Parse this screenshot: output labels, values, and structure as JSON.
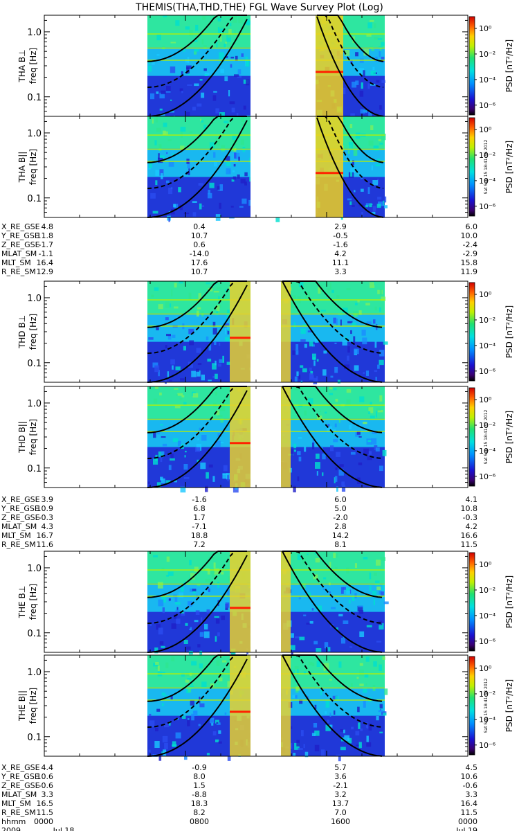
{
  "title": "THEMIS(THA,THD,THE) FGL Wave Survey Plot (Log)",
  "chart_data": {
    "type": "heatmap",
    "title": "THEMIS(THA,THD,THE) FGL Wave Survey Plot (Log)",
    "xrange": [
      "2009 Jul 18 00:00",
      "2009 Jul 19 00:00"
    ],
    "ylabel": "freq [Hz]",
    "yscale": "log",
    "ylim": [
      0.05,
      1.8
    ],
    "yticks": [
      "1.0",
      "0.1"
    ],
    "colorbar": {
      "label": "PSD [nT²/Hz]",
      "scale": "log",
      "ticks": [
        "10⁰",
        "10⁻²",
        "10⁻⁴",
        "10⁻⁶"
      ]
    },
    "panels": [
      {
        "probe": "THA",
        "label": "THA B⊥",
        "stamp": ""
      },
      {
        "probe": "THA",
        "label": "THA B||",
        "stamp": "Sat Sep 15 18:41:36 2012"
      },
      {
        "probe": "THD",
        "label": "THD B⊥",
        "stamp": ""
      },
      {
        "probe": "THD",
        "label": "THD B||",
        "stamp": "Sat Sep 15 18:41:37 2012"
      },
      {
        "probe": "THE",
        "label": "THE B⊥",
        "stamp": ""
      },
      {
        "probe": "THE",
        "label": "THE B||",
        "stamp": "Sat Sep 15 18:41:38 2012"
      }
    ],
    "ephemeris": [
      {
        "probe": "THA",
        "rows": [
          {
            "name": "X_RE_GSE",
            "values": [
              "4.8",
              "0.4",
              "2.9",
              "6.0"
            ]
          },
          {
            "name": "Y_RE_GSE",
            "values": [
              "11.8",
              "10.7",
              "-0.5",
              "10.0"
            ]
          },
          {
            "name": "Z_RE_GSE",
            "values": [
              "-1.7",
              "0.6",
              "-1.6",
              "-2.4"
            ]
          },
          {
            "name": "MLAT_SM",
            "values": [
              "-1.1",
              "-14.0",
              "4.2",
              "-2.9"
            ]
          },
          {
            "name": "MLT_SM",
            "values": [
              "16.4",
              "17.6",
              "11.1",
              "15.8"
            ]
          },
          {
            "name": "R_RE_SM",
            "values": [
              "12.9",
              "10.7",
              "3.3",
              "11.9"
            ]
          }
        ]
      },
      {
        "probe": "THD",
        "rows": [
          {
            "name": "X_RE_GSE",
            "values": [
              "3.9",
              "-1.6",
              "6.0",
              "4.1"
            ]
          },
          {
            "name": "Y_RE_GSE",
            "values": [
              "10.9",
              "6.8",
              "5.0",
              "10.8"
            ]
          },
          {
            "name": "Z_RE_GSE",
            "values": [
              "-0.3",
              "1.7",
              "-2.0",
              "-0.3"
            ]
          },
          {
            "name": "MLAT_SM",
            "values": [
              "4.3",
              "-7.1",
              "2.8",
              "4.2"
            ]
          },
          {
            "name": "MLT_SM",
            "values": [
              "16.7",
              "18.8",
              "14.2",
              "16.6"
            ]
          },
          {
            "name": "R_RE_SM",
            "values": [
              "11.6",
              "7.2",
              "8.1",
              "11.5"
            ]
          }
        ]
      },
      {
        "probe": "THE",
        "rows": [
          {
            "name": "X_RE_GSE",
            "values": [
              "4.4",
              "-0.9",
              "5.7",
              "4.5"
            ]
          },
          {
            "name": "Y_RE_GSE",
            "values": [
              "10.6",
              "8.0",
              "3.6",
              "10.6"
            ]
          },
          {
            "name": "Z_RE_GSE",
            "values": [
              "-0.6",
              "1.5",
              "-2.1",
              "-0.6"
            ]
          },
          {
            "name": "MLAT_SM",
            "values": [
              "3.3",
              "-8.8",
              "3.2",
              "3.3"
            ]
          },
          {
            "name": "MLT_SM",
            "values": [
              "16.5",
              "18.3",
              "13.7",
              "16.4"
            ]
          },
          {
            "name": "R_RE_SM",
            "values": [
              "11.5",
              "8.2",
              "7.0",
              "11.5"
            ]
          },
          {
            "name": "hhmm",
            "values": [
              "0000",
              "0800",
              "1600",
              "0000"
            ]
          }
        ]
      }
    ],
    "date_row": {
      "name": "2009",
      "values": [
        "Jul 18",
        "",
        "",
        "Jul 19"
      ]
    }
  }
}
